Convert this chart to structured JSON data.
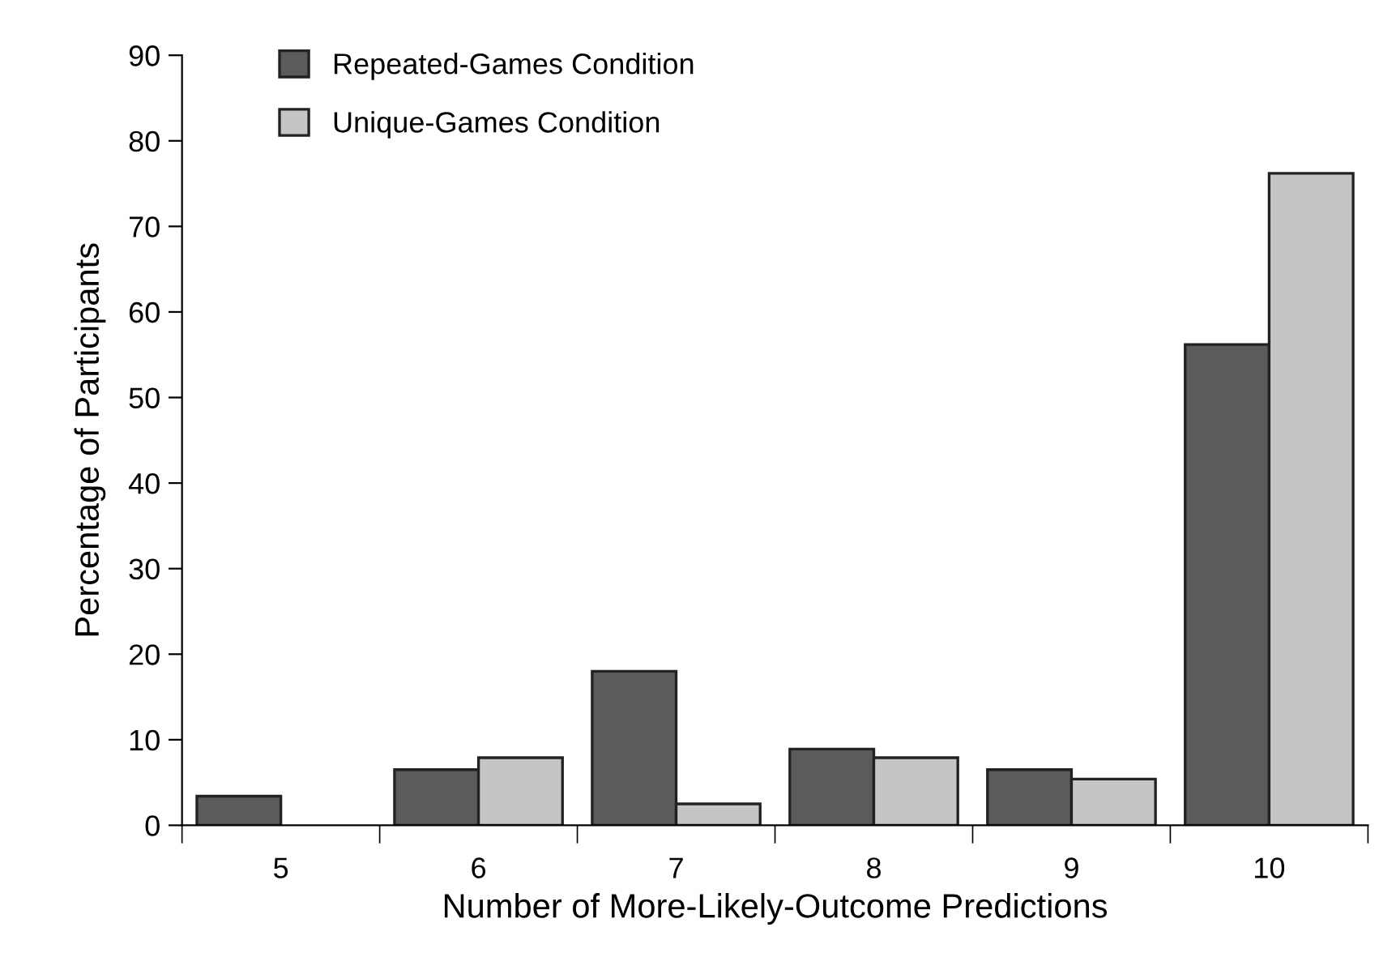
{
  "chart_data": {
    "type": "bar",
    "xlabel": "Number of More-Likely-Outcome Predictions",
    "ylabel": "Percentage of Participants",
    "categories": [
      "5",
      "6",
      "7",
      "8",
      "9",
      "10"
    ],
    "series": [
      {
        "name": "Repeated-Games Condition",
        "color": "#5b5b5d",
        "values": [
          3.4,
          6.5,
          18.0,
          8.9,
          6.5,
          56.2
        ]
      },
      {
        "name": "Unique-Games Condition",
        "color": "#c4c5c7",
        "values": [
          0,
          7.9,
          2.5,
          7.9,
          5.4,
          76.2
        ]
      }
    ],
    "ylim": [
      0,
      90
    ],
    "yticks": [
      0,
      10,
      20,
      30,
      40,
      50,
      60,
      70,
      80,
      90
    ],
    "grid": false,
    "legend": "top left"
  }
}
